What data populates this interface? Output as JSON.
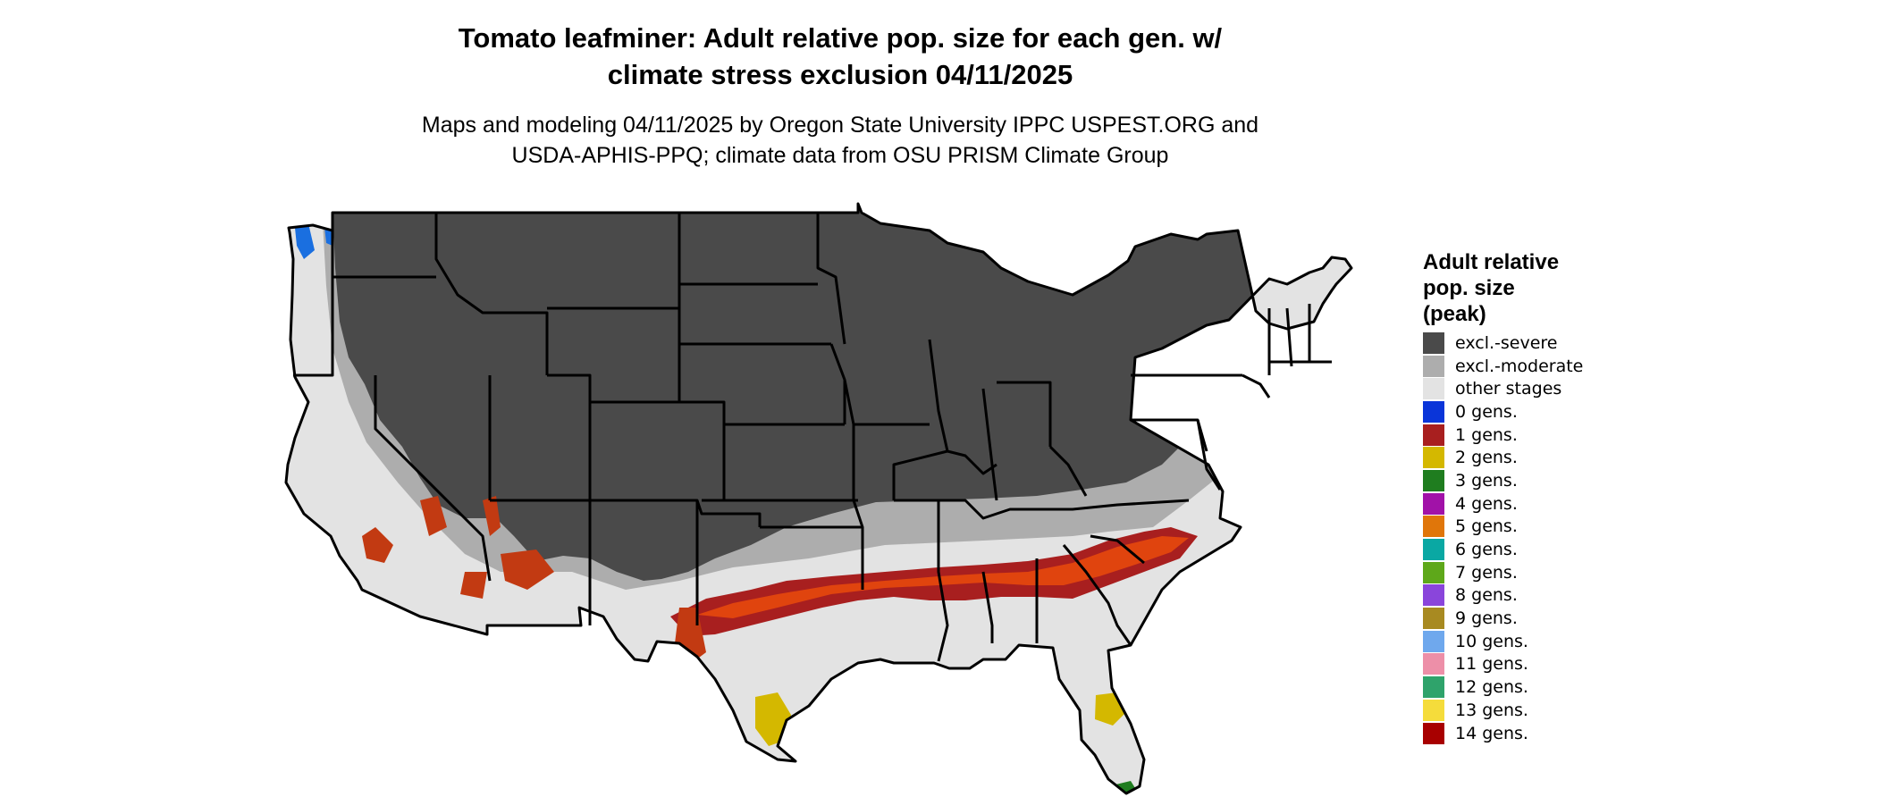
{
  "title_line1": "Tomato leafminer: Adult relative pop. size for each gen. w/",
  "title_line2": "climate stress exclusion 04/11/2025",
  "subtitle_line1": "Maps and modeling 04/11/2025 by Oregon State University IPPC USPEST.ORG and",
  "subtitle_line2": "USDA-APHIS-PPQ; climate data from OSU PRISM Climate Group",
  "legend": {
    "title_line1": "Adult relative",
    "title_line2": "pop. size",
    "title_line3": "(peak)",
    "items": [
      {
        "label": "excl.-severe",
        "color": "#4a4a4a"
      },
      {
        "label": "excl.-moderate",
        "color": "#adadad"
      },
      {
        "label": "other stages",
        "color": "#e3e3e3"
      },
      {
        "label": "0 gens.",
        "color": "#0a35d9"
      },
      {
        "label": "1 gens.",
        "color": "#a81f1f"
      },
      {
        "label": "2 gens.",
        "color": "#d4b800"
      },
      {
        "label": "3 gens.",
        "color": "#1f7d1f"
      },
      {
        "label": "4 gens.",
        "color": "#a112a8"
      },
      {
        "label": "5 gens.",
        "color": "#e0760a"
      },
      {
        "label": "6 gens.",
        "color": "#0aa8a3"
      },
      {
        "label": "7 gens.",
        "color": "#5ea81a"
      },
      {
        "label": "8 gens.",
        "color": "#8a45db"
      },
      {
        "label": "9 gens.",
        "color": "#a88a21"
      },
      {
        "label": "10 gens.",
        "color": "#6fa8ed"
      },
      {
        "label": "11 gens.",
        "color": "#ed8fa8"
      },
      {
        "label": "12 gens.",
        "color": "#2fa36b"
      },
      {
        "label": "13 gens.",
        "color": "#f5dc3b"
      },
      {
        "label": "14 gens.",
        "color": "#a80000"
      }
    ]
  },
  "map": {
    "colors": {
      "excl_severe": "#4a4a4a",
      "excl_moderate": "#adadad",
      "other_stages": "#e3e3e3",
      "band_dark": "#a81f1f",
      "band_orange": "#e0440e",
      "yellow": "#d4b800",
      "green": "#1f7d1f",
      "blue": "#1a6fe0",
      "border": "#000000"
    }
  }
}
